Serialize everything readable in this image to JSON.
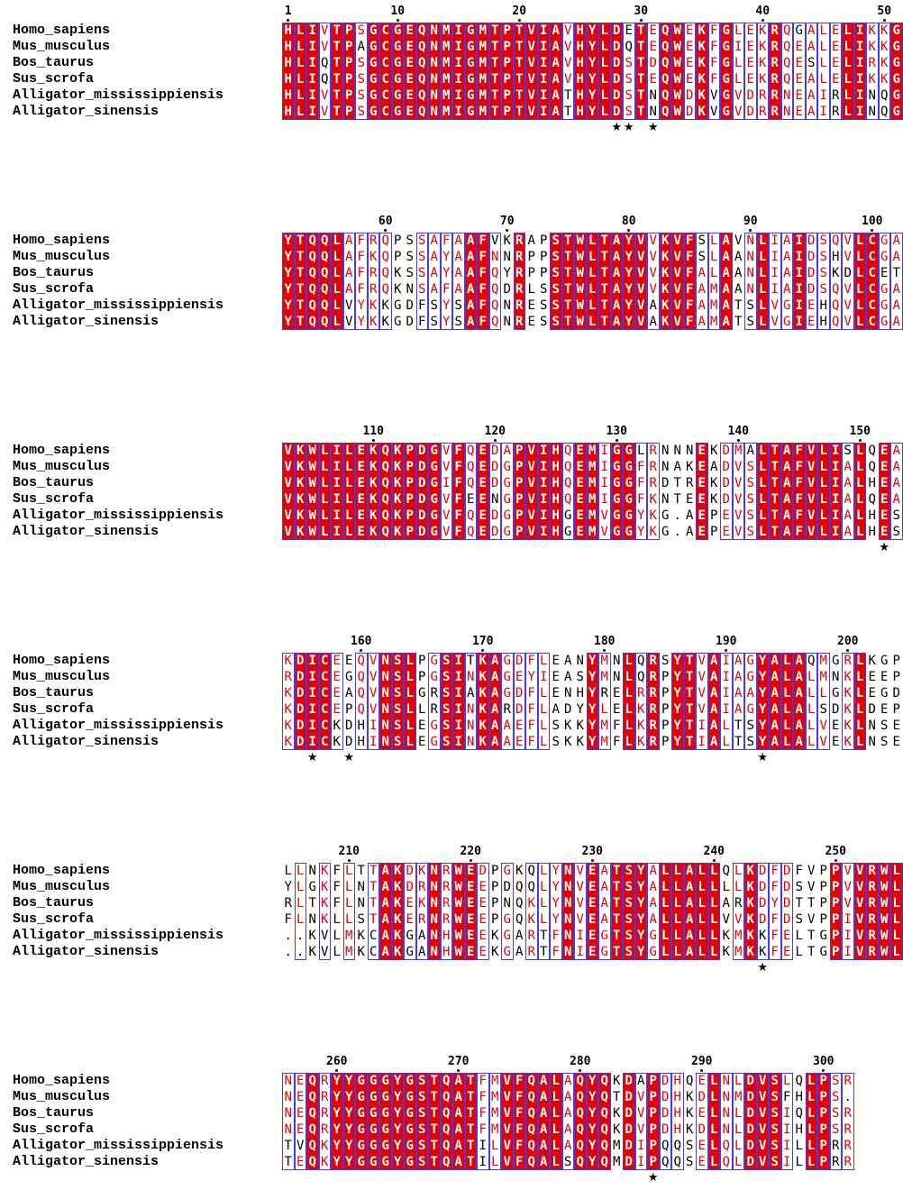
{
  "species": [
    "Homo_sapiens",
    "Mus_musculus",
    "Bos_taurus",
    "Sus_scrofa",
    "Alligator_mississippiensis",
    "Alligator_sinensis"
  ],
  "blocks": [
    {
      "start": 1,
      "ruler_numbers": [
        1,
        10,
        20,
        30,
        40,
        50
      ],
      "sequences": [
        "HLIVTPSGCGEQNMIGMTPTVIAVHYLDETEQWEKFGLEKRQGALELIKKG",
        "HLIVTPAGCGEQNMIGMTPTVIAVHYLDQTEQWEKFGIEKRQEALELIKKG",
        "HLIQTPSGCGEQNMIGMTPTVIAVHYLDSTDQWEKFGLEKRQESLELIRKG",
        "HLIQTPSGCGEQNMIGMTPTVIAVHYLDSTEQWEKFGLEKRQEALELIKKG",
        "HLIVTPSGCGEQNMIGMTPTVIATHYLDSTNQWDKVGVDRRNEAIRLINQG",
        "HLIVTPSGCGEQNMIGMTPTVIATHYLDSTNQWDKVGVDRRNEAIRLINQG"
      ],
      "star_positions": [
        28,
        29,
        31
      ]
    },
    {
      "start": 52,
      "ruler_numbers": [
        60,
        70,
        80,
        90,
        100
      ],
      "sequences": [
        "YTQQLAFRQPSSAFAAFVKRAPSTWLTAYVVKVFSLAVNLIAIDSQVLCGA",
        "YTQQLAFKQPSSAYAAFNNRPPSTWLTAYVVKVFSLAANLIAIDSHVLCGA",
        "YTQQLAFRQKSSAYAAFQYRPPSTWLTAYVVKVFALAANLIAIDSKDLCET",
        "YTQQLAFRQKNSAFAAFQDRLSSTWLTAYVVKVFAMAANLIAIDSQVLCGA",
        "YTQQLVYKKGDFSYSAFQNRESSTWLTAYVAKVFAMATSLVGIEHQVLCGA",
        "YTQQLVYKKGDFSYSAFQNRESSTWLTAYVAKVFAMATSLVGIEHQVLCGA"
      ],
      "star_positions": []
    },
    {
      "start": 103,
      "ruler_numbers": [
        110,
        120,
        130,
        140,
        150
      ],
      "sequences": [
        "VKWLILEKQKPDGVFQEDAPVIHQEMIGGLRNNNEKDMALTAFVLISLQEA",
        "VKWLILEKQKPDGVFQEDGPVIHQEMIGGFRNAKEADVSLTAFVLIALQEA",
        "VKWLILEKQKPDGIFQEDGPVIHQEMIGGFRDTREKDVSLTAFVLIALHEA",
        "VKWLILEKQKPDGVFEENGPVIHQEMIGGFKNTEEKDVSLTAFVLIALQEA",
        "VKWLILEKQKPDGVFQEDGPVIHGEMVGGYKG.AEPEVSLTAFVLIALHES",
        "VKWLILEKQKPDGVFQEDGPVIHGEMVGGYKG.AEPEVSLTAFVLIALHES"
      ],
      "star_positions": [
        152
      ]
    },
    {
      "start": 154,
      "ruler_numbers": [
        160,
        170,
        180,
        190,
        200
      ],
      "sequences": [
        "KDICEEQVNSLPGSITKAGDFLEANYMNLQRSYTVAIAGYALAQMGRLKGP",
        "RDICEGQVNSLPGSINKAGEYIEASYMNLQRPYTVAIAGYALALMNKLEEP",
        "KDICEAQVNSLGRSIAKAGDFLENHYRELRRPYTVAIAAYALALLGKLEGD",
        "KDICEPQVNSLLRSINKARDFLADYYLELKRPYTVAIAGYALALSDKLDEP",
        "KDICKDHINSLEGSINKAAEFLSKKYMFLKRPYTIALTSYALALVEKLNSE",
        "KDICKDHINSLEGSINKAAEFLSKKYMFLKRPYTIALTSYALALVEKLNSE"
      ],
      "star_positions": [
        156,
        159,
        193
      ]
    },
    {
      "start": 205,
      "ruler_numbers": [
        210,
        220,
        230,
        240,
        250
      ],
      "sequences": [
        "LLNKFLTTAKDKNRWEDPGKQLYNVEATSYALLALLQLKDFDFVPPVVRWL",
        "YLGKFLNTAKDRNRWEEPDQQLYNVEATSYALLALLLLKDFDSVPPVVRWL",
        "RLTKFLNTAKEKNRWEEPNQKLYNVEATSYALLALLARKDYDTTPPVVRWL",
        "FLNKLLSTAKERNRWEEPGQKLYNVEATSYALLALLVVKDFDSVPPIVRWL",
        "..KVLMKCAKGANHWEEKGARTFNIEGTSYGLLALLKMKKFELTGPIVRWL",
        "..KVLMKCAKGANHWEEKGARTFNIEGTSYGLLALLKMKKFELTGPIVRWL"
      ],
      "star_positions": [
        244
      ]
    },
    {
      "start": 256,
      "ruler_numbers": [
        260,
        270,
        280,
        290,
        300
      ],
      "sequences": [
        "NEQRYYGGGYGSTQATFMVFQALAQYQKDAPDHQELNLDVSLQLPSR",
        "NEQRYYGGGYGSTQATFMVFQALAQYQTDVPDHKDLNMDVSFHLPS.",
        "NEQRYYGGGYGSTQATFMVFQALAQYQKDVPDHKELNLDVSIQLPSR",
        "NEQRYYGGGYGSTQATFMVFQALAQYQKDVPDHKDLNLDVSIHLPSR",
        "TVQKYYGGGYGSTQATILVFQALAQYQMDIPQQSELQLDVSILLPRR",
        "TEQKYYGGGYGSTQATILVFQALSQYQMDIPQQSELQLDVSILLPRR"
      ],
      "star_positions": [
        286
      ]
    }
  ],
  "colors": {
    "strict_identity_fill": "#e60000",
    "strict_identity_text": "#ffffff",
    "similar_text": "#e60000",
    "similarity_box": "#3c3cff",
    "plain_text": "#000000"
  },
  "star_symbol": "★"
}
